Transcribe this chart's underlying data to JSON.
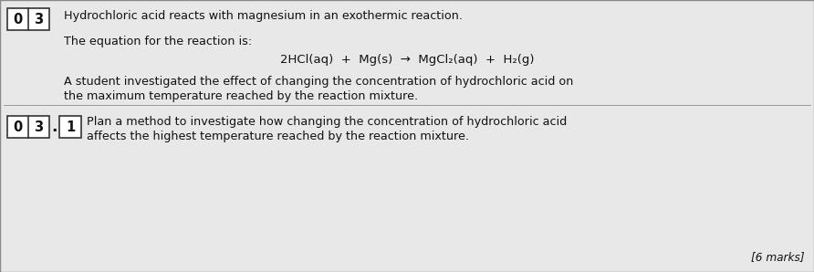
{
  "bg_color": "#c8c8c8",
  "content_bg": "#e8e8e8",
  "box_bg": "#ffffff",
  "box_border": "#333333",
  "text_color": "#111111",
  "line1": "Hydrochloric acid reacts with magnesium in an exothermic reaction.",
  "line2": "The equation for the reaction is:",
  "equation": "2HCl(aq)  +  Mg(s)  →  MgCl₂(aq)  +  H₂(g)",
  "line3": "A student investigated the effect of changing the concentration of hydrochloric acid on",
  "line4": "the maximum temperature reached by the reaction mixture.",
  "line5": "Plan a method to investigate how changing the concentration of hydrochloric acid",
  "line6": "affects the highest temperature reached by the reaction mixture.",
  "marks_text": "[6 marks]",
  "font_size_main": 9.2,
  "font_size_eq": 9.5,
  "font_size_label": 10.5
}
